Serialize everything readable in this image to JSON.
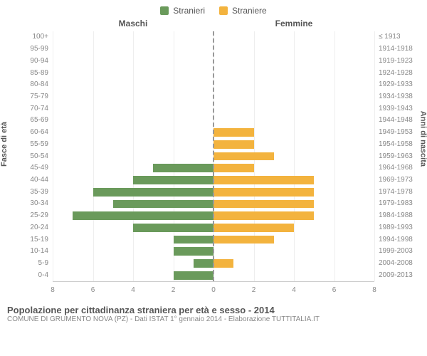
{
  "legend": {
    "male": {
      "label": "Stranieri",
      "color": "#6a9a5b"
    },
    "female": {
      "label": "Straniere",
      "color": "#f3b33e"
    }
  },
  "headers": {
    "left": "Maschi",
    "right": "Femmine"
  },
  "ylabels": {
    "left": "Fasce di età",
    "right": "Anni di nascita"
  },
  "xaxis": {
    "max": 8,
    "ticks": [
      8,
      6,
      4,
      2,
      0,
      2,
      4,
      6,
      8
    ]
  },
  "colors": {
    "bg": "#ffffff",
    "grid": "#eeeeee",
    "axis": "#cccccc",
    "center": "#999999",
    "text": "#555555",
    "muted": "#888888"
  },
  "chart_type": "population-pyramid",
  "rows": [
    {
      "age": "100+",
      "birth": "≤ 1913",
      "m": 0,
      "f": 0
    },
    {
      "age": "95-99",
      "birth": "1914-1918",
      "m": 0,
      "f": 0
    },
    {
      "age": "90-94",
      "birth": "1919-1923",
      "m": 0,
      "f": 0
    },
    {
      "age": "85-89",
      "birth": "1924-1928",
      "m": 0,
      "f": 0
    },
    {
      "age": "80-84",
      "birth": "1929-1933",
      "m": 0,
      "f": 0
    },
    {
      "age": "75-79",
      "birth": "1934-1938",
      "m": 0,
      "f": 0
    },
    {
      "age": "70-74",
      "birth": "1939-1943",
      "m": 0,
      "f": 0
    },
    {
      "age": "65-69",
      "birth": "1944-1948",
      "m": 0,
      "f": 0
    },
    {
      "age": "60-64",
      "birth": "1949-1953",
      "m": 0,
      "f": 2
    },
    {
      "age": "55-59",
      "birth": "1954-1958",
      "m": 0,
      "f": 2
    },
    {
      "age": "50-54",
      "birth": "1959-1963",
      "m": 0,
      "f": 3
    },
    {
      "age": "45-49",
      "birth": "1964-1968",
      "m": 3,
      "f": 2
    },
    {
      "age": "40-44",
      "birth": "1969-1973",
      "m": 4,
      "f": 5
    },
    {
      "age": "35-39",
      "birth": "1974-1978",
      "m": 6,
      "f": 5
    },
    {
      "age": "30-34",
      "birth": "1979-1983",
      "m": 5,
      "f": 5
    },
    {
      "age": "25-29",
      "birth": "1984-1988",
      "m": 7,
      "f": 5
    },
    {
      "age": "20-24",
      "birth": "1989-1993",
      "m": 4,
      "f": 4
    },
    {
      "age": "15-19",
      "birth": "1994-1998",
      "m": 2,
      "f": 3
    },
    {
      "age": "10-14",
      "birth": "1999-2003",
      "m": 2,
      "f": 0
    },
    {
      "age": "5-9",
      "birth": "2004-2008",
      "m": 1,
      "f": 1
    },
    {
      "age": "0-4",
      "birth": "2009-2013",
      "m": 2,
      "f": 0
    }
  ],
  "footer": {
    "title": "Popolazione per cittadinanza straniera per età e sesso - 2014",
    "source": "COMUNE DI GRUMENTO NOVA (PZ) - Dati ISTAT 1° gennaio 2014 - Elaborazione TUTTITALIA.IT"
  }
}
